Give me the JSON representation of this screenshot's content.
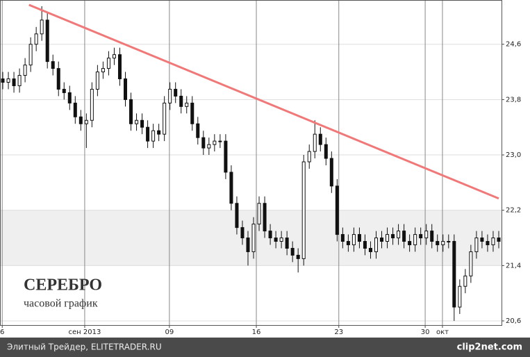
{
  "chart_data": {
    "type": "candlestick",
    "title": "СЕРЕБРО",
    "subtitle": "часовой график",
    "footer": "Элитный Трейдер, ELITETRADER.RU",
    "watermark": "clip2net.com",
    "open": [
      24.1,
      24.05,
      24.1,
      24.0,
      24.15,
      24.3,
      24.6,
      24.75,
      24.95,
      24.35,
      24.25,
      23.95,
      23.9,
      23.75,
      23.55,
      23.45,
      23.5,
      23.95,
      24.2,
      24.25,
      24.4,
      24.45,
      24.1,
      23.8,
      23.45,
      23.5,
      23.4,
      23.2,
      23.35,
      23.3,
      23.75,
      23.95,
      23.85,
      23.7,
      23.75,
      23.45,
      23.25,
      23.1,
      23.15,
      23.2,
      23.2,
      22.75,
      22.3,
      21.95,
      21.8,
      21.6,
      22.0,
      22.3,
      21.9,
      21.8,
      21.75,
      21.8,
      21.65,
      21.55,
      21.5,
      22.9,
      23.05,
      23.3,
      23.15,
      22.95,
      22.55,
      21.85,
      21.75,
      21.7,
      21.85,
      21.75,
      21.65,
      21.6,
      21.8,
      21.75,
      21.85,
      21.8,
      21.9,
      21.75,
      21.7,
      21.85,
      21.8,
      21.9,
      21.75,
      21.7,
      21.75,
      21.75,
      20.8,
      21.1,
      21.25,
      21.6,
      21.8,
      21.75,
      21.7,
      21.8
    ],
    "high": [
      24.2,
      24.2,
      24.2,
      24.25,
      24.4,
      24.7,
      24.85,
      25.15,
      25.05,
      24.45,
      24.35,
      24.05,
      24.0,
      23.85,
      23.65,
      23.6,
      24.05,
      24.3,
      24.35,
      24.5,
      24.55,
      24.55,
      24.2,
      23.9,
      23.6,
      23.6,
      23.5,
      23.45,
      23.45,
      23.85,
      24.05,
      24.05,
      23.95,
      23.85,
      23.85,
      23.55,
      23.35,
      23.25,
      23.3,
      23.3,
      23.3,
      22.85,
      22.4,
      22.05,
      21.9,
      22.1,
      22.4,
      22.4,
      22.0,
      21.9,
      21.9,
      21.9,
      21.75,
      21.65,
      23.0,
      23.15,
      23.5,
      23.4,
      23.25,
      23.05,
      22.65,
      21.95,
      21.85,
      21.95,
      21.95,
      21.85,
      21.75,
      21.9,
      21.9,
      21.95,
      21.95,
      22.0,
      22.0,
      21.85,
      21.95,
      21.95,
      22.0,
      22.0,
      21.85,
      21.85,
      21.85,
      21.85,
      21.2,
      21.35,
      21.7,
      21.9,
      21.9,
      21.85,
      21.9,
      21.9
    ],
    "low": [
      23.95,
      23.95,
      23.9,
      23.9,
      24.05,
      24.2,
      24.5,
      24.65,
      24.25,
      24.15,
      23.85,
      23.8,
      23.65,
      23.45,
      23.35,
      23.1,
      23.4,
      23.85,
      24.1,
      24.15,
      24.3,
      24.0,
      23.7,
      23.35,
      23.35,
      23.3,
      23.1,
      23.1,
      23.2,
      23.2,
      23.65,
      23.75,
      23.6,
      23.6,
      23.35,
      23.15,
      23.0,
      23.0,
      23.05,
      23.1,
      22.65,
      22.2,
      21.85,
      21.7,
      21.4,
      21.5,
      21.9,
      21.8,
      21.7,
      21.65,
      21.65,
      21.55,
      21.45,
      21.3,
      21.4,
      22.8,
      22.95,
      23.05,
      22.85,
      22.45,
      21.75,
      21.65,
      21.6,
      21.6,
      21.65,
      21.55,
      21.5,
      21.5,
      21.65,
      21.65,
      21.7,
      21.7,
      21.65,
      21.6,
      21.6,
      21.7,
      21.7,
      21.65,
      21.6,
      21.6,
      21.65,
      20.6,
      20.7,
      21.0,
      21.15,
      21.5,
      21.65,
      21.6,
      21.6,
      21.65
    ],
    "close": [
      24.05,
      24.1,
      24.0,
      24.15,
      24.3,
      24.6,
      24.75,
      24.95,
      24.35,
      24.25,
      23.95,
      23.9,
      23.75,
      23.55,
      23.45,
      23.5,
      23.95,
      24.2,
      24.25,
      24.4,
      24.45,
      24.1,
      23.8,
      23.45,
      23.5,
      23.4,
      23.2,
      23.35,
      23.3,
      23.75,
      23.95,
      23.85,
      23.7,
      23.75,
      23.45,
      23.25,
      23.1,
      23.15,
      23.2,
      23.2,
      22.75,
      22.3,
      21.95,
      21.8,
      21.6,
      22.0,
      22.3,
      21.9,
      21.8,
      21.75,
      21.8,
      21.65,
      21.55,
      21.5,
      22.9,
      23.05,
      23.3,
      23.15,
      22.95,
      22.55,
      21.85,
      21.75,
      21.7,
      21.85,
      21.75,
      21.65,
      21.6,
      21.8,
      21.75,
      21.85,
      21.8,
      21.9,
      21.75,
      21.7,
      21.85,
      21.8,
      21.9,
      21.75,
      21.7,
      21.75,
      21.75,
      20.8,
      21.1,
      21.25,
      21.6,
      21.8,
      21.75,
      21.7,
      21.8,
      21.75
    ],
    "xlim": [
      0,
      90
    ],
    "xticks": [
      {
        "value": 0.4,
        "label": "6"
      },
      {
        "value": 15.2,
        "label": "сен 2013"
      },
      {
        "value": 30.4,
        "label": "09"
      },
      {
        "value": 46,
        "label": "16"
      },
      {
        "value": 60.8,
        "label": "23"
      },
      {
        "value": 76.3,
        "label": "30"
      },
      {
        "value": 79.4,
        "label": "окт"
      }
    ],
    "ylim": [
      20.54,
      25.24
    ],
    "yticks": [
      {
        "value": 20.6,
        "label": "20,6"
      },
      {
        "value": 21.4,
        "label": "21,4"
      },
      {
        "value": 22.2,
        "label": "22,2"
      },
      {
        "value": 23.0,
        "label": "23,0"
      },
      {
        "value": 23.8,
        "label": "23,8"
      },
      {
        "value": 24.6,
        "label": "24,6"
      }
    ],
    "band": [
      21.4,
      22.2
    ],
    "band_color": "#efefef",
    "trendline": {
      "x": [
        5.2,
        89.5
      ],
      "y": [
        25.17,
        22.37
      ],
      "color": "#f07878"
    },
    "color": "#111111",
    "grid": true
  }
}
